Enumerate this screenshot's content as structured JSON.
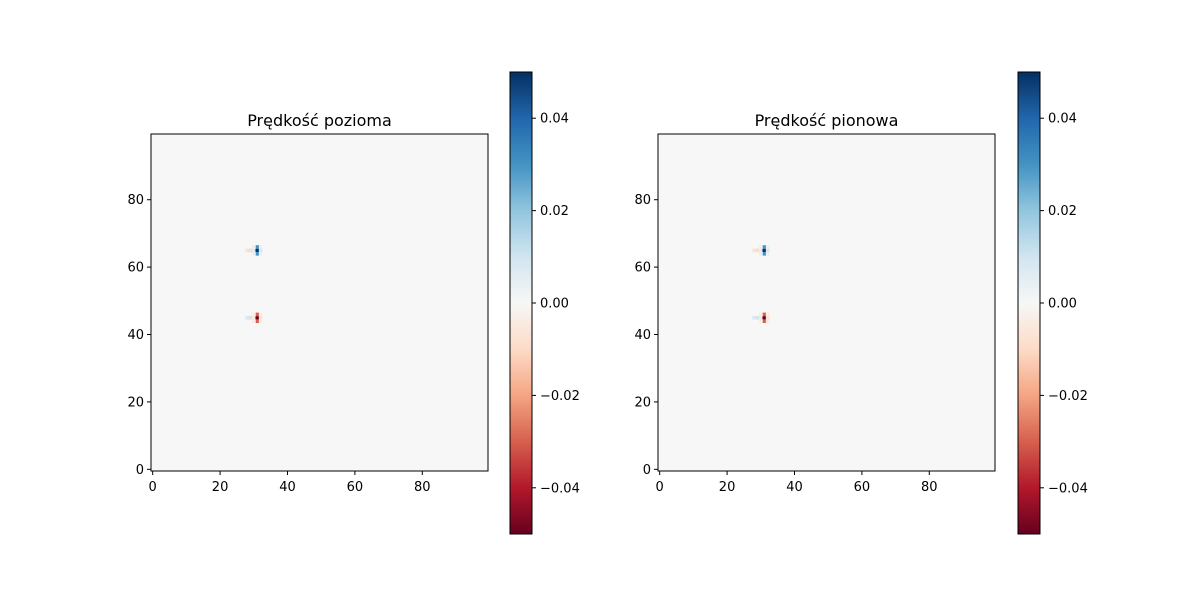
{
  "chart_data": [
    {
      "type": "heatmap",
      "title": "Prędkość pozioma",
      "xlabel": "",
      "ylabel": "",
      "xlim": [
        -0.5,
        99.5
      ],
      "ylim": [
        -0.5,
        99.5
      ],
      "x_ticks": [
        "0",
        "20",
        "40",
        "60",
        "80"
      ],
      "y_ticks": [
        "0",
        "20",
        "40",
        "60",
        "80"
      ],
      "background_value": 0.0,
      "cells": [
        {
          "x": 28,
          "y": 65,
          "v": -0.008
        },
        {
          "x": 29,
          "y": 65,
          "v": -0.01
        },
        {
          "x": 30,
          "y": 65,
          "v": 0.006
        },
        {
          "x": 31,
          "y": 65,
          "v": 0.05
        },
        {
          "x": 32,
          "y": 65,
          "v": 0.008
        },
        {
          "x": 31,
          "y": 66,
          "v": 0.03
        },
        {
          "x": 31,
          "y": 64,
          "v": 0.03
        },
        {
          "x": 30,
          "y": 64,
          "v": 0.004
        },
        {
          "x": 32,
          "y": 64,
          "v": 0.004
        },
        {
          "x": 30,
          "y": 66,
          "v": 0.004
        },
        {
          "x": 32,
          "y": 66,
          "v": 0.004
        },
        {
          "x": 28,
          "y": 45,
          "v": 0.008
        },
        {
          "x": 29,
          "y": 45,
          "v": 0.01
        },
        {
          "x": 30,
          "y": 45,
          "v": -0.006
        },
        {
          "x": 31,
          "y": 45,
          "v": -0.05
        },
        {
          "x": 32,
          "y": 45,
          "v": -0.008
        },
        {
          "x": 31,
          "y": 46,
          "v": -0.03
        },
        {
          "x": 31,
          "y": 44,
          "v": -0.03
        },
        {
          "x": 30,
          "y": 44,
          "v": -0.004
        },
        {
          "x": 32,
          "y": 44,
          "v": -0.004
        },
        {
          "x": 30,
          "y": 46,
          "v": -0.004
        },
        {
          "x": 32,
          "y": 46,
          "v": -0.004
        }
      ],
      "colorbar": {
        "colormap": "RdBu",
        "range": [
          -0.05,
          0.05
        ],
        "ticks": [
          -0.04,
          -0.02,
          0.0,
          0.02,
          0.04
        ],
        "tick_labels": [
          "−0.04",
          "−0.02",
          "0.00",
          "0.02",
          "0.04"
        ]
      }
    },
    {
      "type": "heatmap",
      "title": "Prędkość pionowa",
      "xlabel": "",
      "ylabel": "",
      "xlim": [
        -0.5,
        99.5
      ],
      "ylim": [
        -0.5,
        99.5
      ],
      "x_ticks": [
        "0",
        "20",
        "40",
        "60",
        "80"
      ],
      "y_ticks": [
        "0",
        "20",
        "40",
        "60",
        "80"
      ],
      "background_value": 0.0,
      "cells": [
        {
          "x": 28,
          "y": 65,
          "v": -0.008
        },
        {
          "x": 29,
          "y": 65,
          "v": -0.01
        },
        {
          "x": 30,
          "y": 65,
          "v": 0.006
        },
        {
          "x": 31,
          "y": 65,
          "v": 0.05
        },
        {
          "x": 32,
          "y": 65,
          "v": 0.008
        },
        {
          "x": 31,
          "y": 66,
          "v": 0.03
        },
        {
          "x": 31,
          "y": 64,
          "v": 0.03
        },
        {
          "x": 30,
          "y": 64,
          "v": 0.004
        },
        {
          "x": 32,
          "y": 64,
          "v": 0.004
        },
        {
          "x": 30,
          "y": 66,
          "v": 0.004
        },
        {
          "x": 32,
          "y": 66,
          "v": 0.004
        },
        {
          "x": 28,
          "y": 45,
          "v": 0.008
        },
        {
          "x": 29,
          "y": 45,
          "v": 0.01
        },
        {
          "x": 30,
          "y": 45,
          "v": -0.006
        },
        {
          "x": 31,
          "y": 45,
          "v": -0.05
        },
        {
          "x": 32,
          "y": 45,
          "v": -0.008
        },
        {
          "x": 31,
          "y": 46,
          "v": -0.03
        },
        {
          "x": 31,
          "y": 44,
          "v": -0.03
        },
        {
          "x": 30,
          "y": 44,
          "v": -0.004
        },
        {
          "x": 32,
          "y": 44,
          "v": -0.004
        },
        {
          "x": 30,
          "y": 46,
          "v": -0.004
        },
        {
          "x": 32,
          "y": 46,
          "v": -0.004
        }
      ],
      "colorbar": {
        "colormap": "RdBu",
        "range": [
          -0.05,
          0.05
        ],
        "ticks": [
          -0.04,
          -0.02,
          0.0,
          0.02,
          0.04
        ],
        "tick_labels": [
          "−0.04",
          "−0.02",
          "0.00",
          "0.02",
          "0.04"
        ]
      }
    }
  ]
}
